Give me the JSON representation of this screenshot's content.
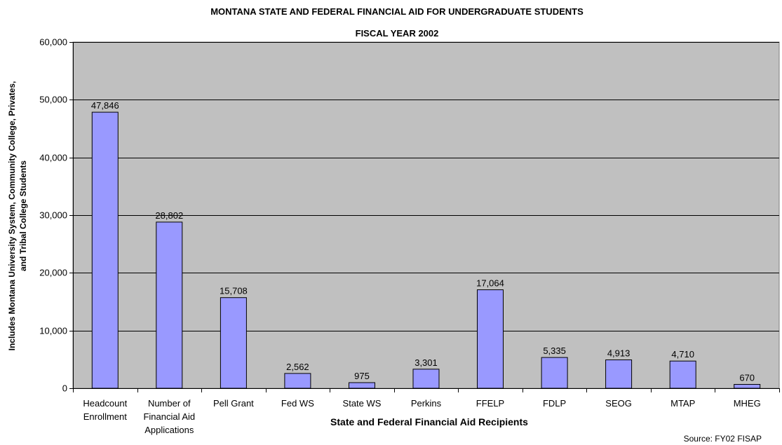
{
  "chart_data": {
    "type": "bar",
    "title": "MONTANA STATE AND FEDERAL FINANCIAL AID FOR UNDERGRADUATE STUDENTS",
    "subtitle": "FISCAL YEAR 2002",
    "xlabel": "State and Federal Financial Aid Recipients",
    "ylabel_lines": [
      "Includes Montana University System, Community College, Privates,",
      "and Tribal College Students"
    ],
    "categories": [
      [
        "Headcount",
        "Enrollment"
      ],
      [
        "Number of",
        "Financial Aid",
        "Applications"
      ],
      [
        "Pell Grant"
      ],
      [
        "Fed WS"
      ],
      [
        "State WS"
      ],
      [
        "Perkins"
      ],
      [
        "FFELP"
      ],
      [
        "FDLP"
      ],
      [
        "SEOG"
      ],
      [
        "MTAP"
      ],
      [
        "MHEG"
      ]
    ],
    "values": [
      47846,
      28802,
      15708,
      2562,
      975,
      3301,
      17064,
      5335,
      4913,
      4710,
      670
    ],
    "value_labels": [
      "47,846",
      "28,802",
      "15,708",
      "2,562",
      "975",
      "3,301",
      "17,064",
      "5,335",
      "4,913",
      "4,710",
      "670"
    ],
    "ylim": [
      0,
      60000
    ],
    "yticks": [
      0,
      10000,
      20000,
      30000,
      40000,
      50000,
      60000
    ],
    "ytick_labels": [
      "0",
      "10,000",
      "20,000",
      "30,000",
      "40,000",
      "50,000",
      "60,000"
    ],
    "grid": true,
    "legend": "none",
    "source": "Source:  FY02 FISAP",
    "colors": {
      "plot_background": "#c0c0c0",
      "bar_fill": "#9999ff",
      "bar_stroke": "#000000",
      "gridline": "#000000"
    }
  }
}
